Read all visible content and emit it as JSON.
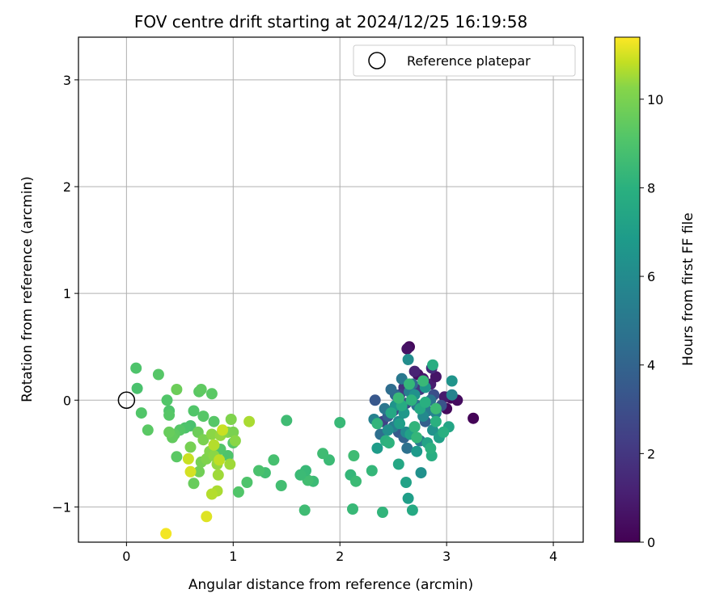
{
  "chart_data": {
    "type": "scatter",
    "title": "FOV centre drift starting at 2024/12/25 16:19:58",
    "xlabel": "Angular distance from reference (arcmin)",
    "ylabel": "Rotation from reference (arcmin)",
    "xlim": [
      -0.45,
      4.28
    ],
    "ylim": [
      -1.33,
      3.4
    ],
    "xticks": [
      0,
      1,
      2,
      3,
      4
    ],
    "xtick_labels": [
      "0",
      "1",
      "2",
      "3",
      "4"
    ],
    "yticks": [
      -1,
      0,
      1,
      2,
      3
    ],
    "ytick_labels": [
      "−1",
      "0",
      "1",
      "2",
      "3"
    ],
    "grid": true,
    "legend": {
      "placement": "top-right",
      "entries": [
        "Reference platepar"
      ]
    },
    "reference_point": {
      "x": 0,
      "y": 0
    },
    "colorbar": {
      "label": "Hours from first FF file",
      "colormap": "viridis",
      "range": [
        0,
        11.4
      ],
      "ticks": [
        0,
        2,
        4,
        6,
        8,
        10
      ],
      "tick_labels": [
        "0",
        "2",
        "4",
        "6",
        "8",
        "10"
      ]
    },
    "points": [
      [
        2.65,
        0.5,
        0.3
      ],
      [
        2.63,
        0.48,
        0.6
      ],
      [
        2.73,
        0.24,
        0.5
      ],
      [
        2.78,
        0.2,
        0.8
      ],
      [
        2.85,
        0.15,
        1.0
      ],
      [
        2.9,
        0.22,
        0.7
      ],
      [
        3.04,
        0.02,
        0.2
      ],
      [
        3.1,
        0.0,
        0.4
      ],
      [
        3.25,
        -0.17,
        0.1
      ],
      [
        3.0,
        -0.08,
        0.3
      ],
      [
        2.98,
        0.03,
        0.9
      ],
      [
        2.7,
        0.27,
        1.2
      ],
      [
        2.86,
        0.3,
        1.5
      ],
      [
        2.6,
        0.12,
        1.8
      ],
      [
        2.75,
        0.1,
        2.0
      ],
      [
        2.56,
        0.05,
        2.2
      ],
      [
        2.4,
        -0.2,
        2.5
      ],
      [
        2.5,
        -0.1,
        2.6
      ],
      [
        2.62,
        -0.03,
        2.8
      ],
      [
        2.88,
        0.05,
        3.0
      ],
      [
        2.95,
        -0.05,
        3.2
      ],
      [
        2.33,
        0.0,
        3.4
      ],
      [
        2.55,
        -0.3,
        3.5
      ],
      [
        2.7,
        -0.25,
        3.6
      ],
      [
        2.45,
        -0.15,
        3.7
      ],
      [
        2.8,
        -0.2,
        3.8
      ],
      [
        2.6,
        -0.35,
        4.0
      ],
      [
        2.52,
        0.05,
        4.1
      ],
      [
        2.68,
        0.15,
        4.3
      ],
      [
        2.48,
        0.1,
        4.4
      ],
      [
        2.38,
        -0.32,
        4.5
      ],
      [
        2.63,
        -0.45,
        4.6
      ],
      [
        2.72,
        -0.05,
        4.7
      ],
      [
        2.85,
        0.0,
        4.8
      ],
      [
        2.42,
        -0.08,
        4.9
      ],
      [
        2.58,
        0.2,
        5.0
      ],
      [
        2.75,
        -0.38,
        5.1
      ],
      [
        2.82,
        -0.1,
        5.2
      ],
      [
        2.5,
        -0.25,
        5.3
      ],
      [
        2.65,
        0.08,
        5.4
      ],
      [
        2.32,
        -0.18,
        5.5
      ],
      [
        3.05,
        0.05,
        5.6
      ],
      [
        2.9,
        -0.12,
        5.7
      ],
      [
        2.55,
        -0.2,
        5.8
      ],
      [
        2.78,
        -0.15,
        5.9
      ],
      [
        2.62,
        -0.3,
        6.0
      ],
      [
        2.64,
        0.38,
        6.1
      ],
      [
        2.45,
        -0.28,
        6.2
      ],
      [
        2.7,
        0.05,
        6.3
      ],
      [
        2.87,
        -0.28,
        6.4
      ],
      [
        2.52,
        -0.05,
        6.5
      ],
      [
        2.8,
        0.12,
        6.6
      ],
      [
        2.6,
        -0.12,
        6.7
      ],
      [
        2.72,
        -0.48,
        6.8
      ],
      [
        2.35,
        -0.45,
        6.9
      ],
      [
        2.56,
        -0.22,
        7.0
      ],
      [
        2.93,
        -0.35,
        7.1
      ],
      [
        2.66,
        -0.32,
        7.2
      ],
      [
        2.82,
        -0.4,
        7.3
      ],
      [
        3.02,
        -0.25,
        7.4
      ],
      [
        2.48,
        -0.12,
        7.5
      ],
      [
        2.75,
        -0.08,
        7.6
      ],
      [
        2.58,
        -0.05,
        7.7
      ],
      [
        2.86,
        -0.52,
        7.8
      ],
      [
        2.97,
        -0.3,
        7.9
      ],
      [
        2.43,
        -0.38,
        8.0
      ],
      [
        2.76,
        -0.68,
        6.3
      ],
      [
        3.05,
        0.18,
        6.5
      ],
      [
        2.64,
        -0.92,
        7.0
      ],
      [
        2.62,
        -0.77,
        7.2
      ],
      [
        2.55,
        -0.6,
        7.5
      ],
      [
        2.68,
        -1.03,
        7.6
      ],
      [
        2.87,
        0.33,
        7.8
      ],
      [
        2.9,
        -0.2,
        8.0
      ],
      [
        2.8,
        -0.02,
        7.9
      ],
      [
        2.67,
        0.0,
        8.1
      ],
      [
        2.35,
        -0.22,
        8.2
      ],
      [
        2.65,
        0.15,
        8.3
      ],
      [
        2.78,
        0.18,
        8.4
      ],
      [
        2.7,
        -0.25,
        8.2
      ],
      [
        2.46,
        -0.4,
        8.1
      ],
      [
        2.85,
        -0.45,
        8.0
      ],
      [
        2.72,
        -0.35,
        8.3
      ],
      [
        2.55,
        0.02,
        8.4
      ],
      [
        2.9,
        -0.08,
        8.5
      ],
      [
        2.4,
        -1.05,
        8.2
      ],
      [
        2.3,
        -0.66,
        8.3
      ],
      [
        2.12,
        -1.02,
        8.4
      ],
      [
        2.1,
        -0.7,
        8.3
      ],
      [
        2.15,
        -0.76,
        8.5
      ],
      [
        2.13,
        -0.52,
        8.6
      ],
      [
        2.0,
        -0.21,
        8.4
      ],
      [
        1.9,
        -0.56,
        8.5
      ],
      [
        1.84,
        -0.5,
        8.6
      ],
      [
        1.75,
        -0.76,
        8.5
      ],
      [
        1.7,
        -0.75,
        8.7
      ],
      [
        1.67,
        -1.03,
        8.6
      ],
      [
        1.68,
        -0.66,
        8.4
      ],
      [
        1.63,
        -0.7,
        8.5
      ],
      [
        1.5,
        -0.19,
        8.6
      ],
      [
        1.45,
        -0.8,
        8.7
      ],
      [
        1.38,
        -0.56,
        8.8
      ],
      [
        1.3,
        -0.68,
        8.7
      ],
      [
        1.24,
        -0.66,
        8.9
      ],
      [
        1.13,
        -0.77,
        9.0
      ],
      [
        1.05,
        -0.86,
        9.1
      ],
      [
        1.0,
        -0.4,
        9.2
      ],
      [
        0.95,
        -0.52,
        9.0
      ],
      [
        0.88,
        -0.46,
        9.1
      ],
      [
        0.82,
        -0.2,
        9.2
      ],
      [
        0.8,
        0.06,
        9.3
      ],
      [
        0.72,
        -0.15,
        9.2
      ],
      [
        0.68,
        0.08,
        9.3
      ],
      [
        0.7,
        0.1,
        9.4
      ],
      [
        0.63,
        -0.1,
        9.1
      ],
      [
        0.6,
        -0.24,
        8.9
      ],
      [
        0.55,
        -0.26,
        9.0
      ],
      [
        0.5,
        -0.28,
        9.2
      ],
      [
        0.47,
        -0.53,
        9.3
      ],
      [
        0.4,
        -0.1,
        9.0
      ],
      [
        0.38,
        0.0,
        9.1
      ],
      [
        0.4,
        -0.14,
        9.2
      ],
      [
        0.45,
        -0.32,
        9.4
      ],
      [
        0.43,
        -0.35,
        9.5
      ],
      [
        0.4,
        -0.3,
        9.6
      ],
      [
        0.47,
        0.1,
        9.7
      ],
      [
        0.3,
        0.24,
        9.2
      ],
      [
        0.2,
        -0.28,
        9.3
      ],
      [
        0.14,
        -0.12,
        9.1
      ],
      [
        0.1,
        0.11,
        8.9
      ],
      [
        0.09,
        0.3,
        9.0
      ],
      [
        0.63,
        -0.78,
        9.6
      ],
      [
        0.68,
        -0.67,
        9.8
      ],
      [
        0.6,
        -0.44,
        9.9
      ],
      [
        0.67,
        -0.3,
        9.7
      ],
      [
        0.7,
        -0.58,
        9.9
      ],
      [
        0.72,
        -0.37,
        10.0
      ],
      [
        0.75,
        -0.55,
        10.1
      ],
      [
        0.78,
        -0.48,
        10.2
      ],
      [
        0.82,
        -0.52,
        10.3
      ],
      [
        0.85,
        -0.6,
        10.4
      ],
      [
        0.8,
        -0.32,
        10.3
      ],
      [
        0.88,
        -0.33,
        10.4
      ],
      [
        0.95,
        -0.3,
        10.2
      ],
      [
        0.98,
        -0.18,
        10.1
      ],
      [
        1.0,
        -0.3,
        10.0
      ],
      [
        1.02,
        -0.38,
        10.3
      ],
      [
        0.97,
        -0.6,
        10.5
      ],
      [
        0.85,
        -0.85,
        10.6
      ],
      [
        0.8,
        -0.88,
        10.7
      ],
      [
        0.86,
        -0.7,
        10.5
      ],
      [
        0.87,
        -0.56,
        10.8
      ],
      [
        1.15,
        -0.2,
        10.6
      ],
      [
        0.58,
        -0.55,
        10.9
      ],
      [
        0.6,
        -0.67,
        11.0
      ],
      [
        0.75,
        -1.09,
        11.1
      ],
      [
        0.37,
        -1.25,
        11.3
      ],
      [
        0.9,
        -0.28,
        10.9
      ],
      [
        0.82,
        -0.42,
        10.7
      ]
    ]
  }
}
